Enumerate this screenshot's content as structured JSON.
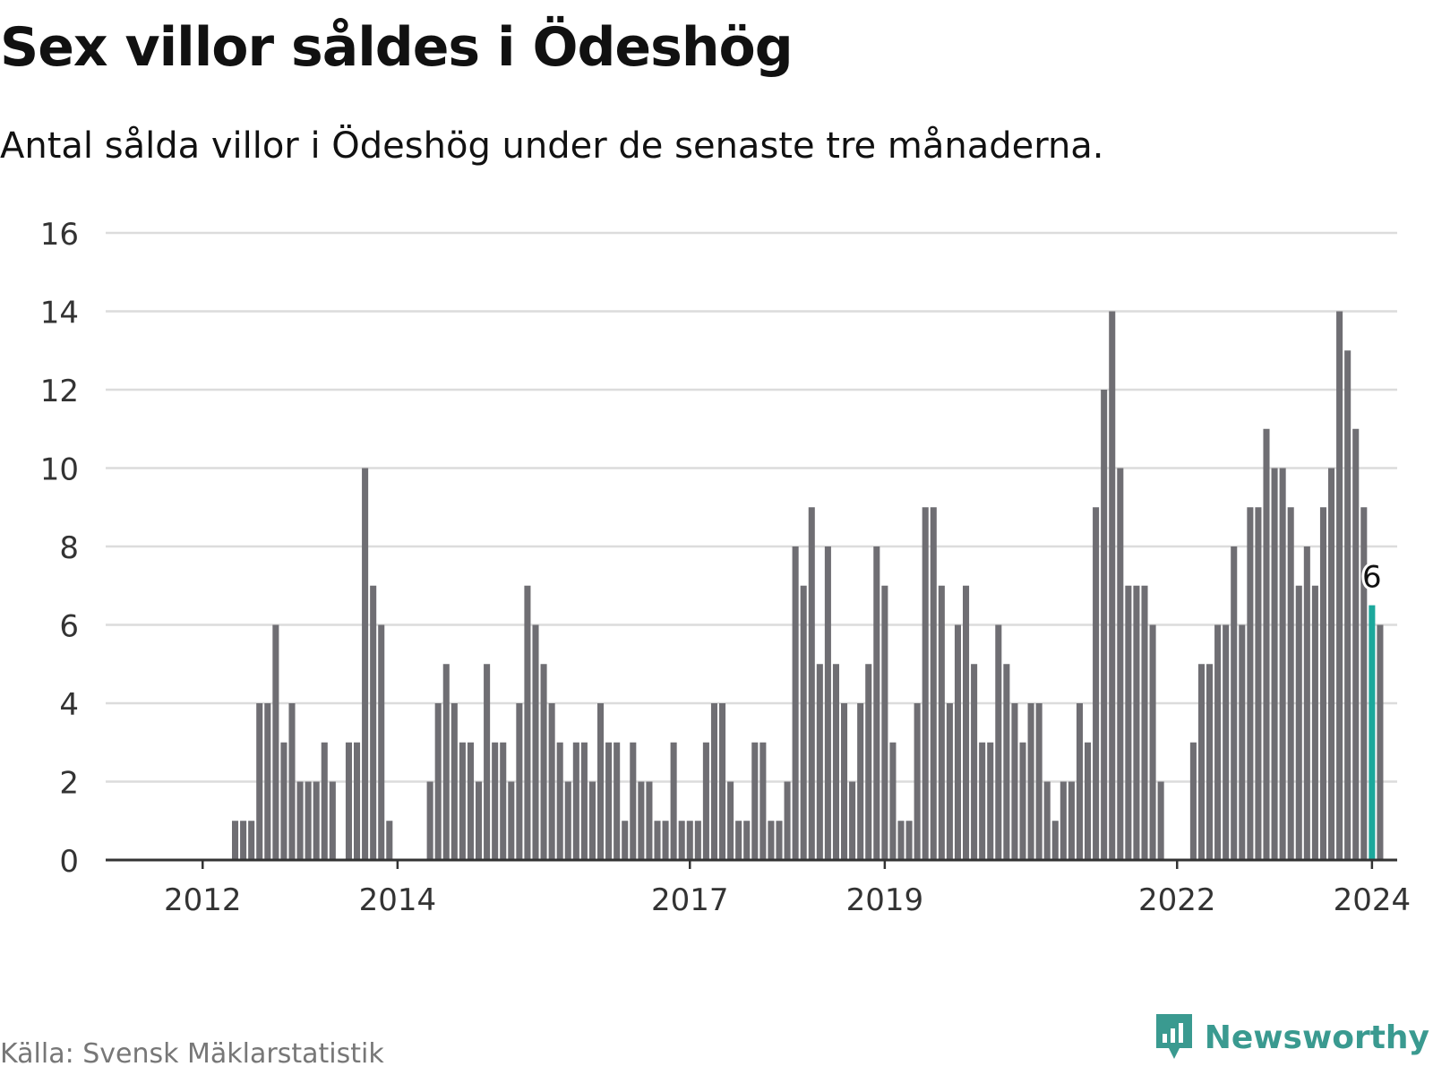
{
  "title": "Sex villor såldes i Ödeshög",
  "subtitle": "Antal sålda villor i Ödeshög under de senaste tre månaderna.",
  "source": "Källa: Svensk Mäklarstatistik",
  "brand": "Newsworthy",
  "colors": {
    "bar": "#6f6e73",
    "highlight": "#1ca89c",
    "grid": "#dcdcdc",
    "axis": "#333333",
    "brand": "#3a9a90"
  },
  "chart_data": {
    "type": "bar",
    "title": "Sex villor såldes i Ödeshög",
    "xlabel": "",
    "ylabel": "",
    "ylim": [
      0,
      16
    ],
    "yticks": [
      0,
      2,
      4,
      6,
      8,
      10,
      12,
      14,
      16
    ],
    "grid": true,
    "start": "2011-01",
    "xticks": [
      {
        "label": "2012",
        "index": 11
      },
      {
        "label": "2014",
        "index": 35
      },
      {
        "label": "2017",
        "index": 71
      },
      {
        "label": "2019",
        "index": 95
      },
      {
        "label": "2022",
        "index": 131
      },
      {
        "label": "2024",
        "index": 155
      }
    ],
    "values": [
      0,
      0,
      0,
      0,
      0,
      0,
      0,
      0,
      0,
      0,
      0,
      0,
      0,
      0,
      0,
      1,
      1,
      1,
      4,
      4,
      6,
      3,
      4,
      2,
      2,
      2,
      3,
      2,
      0,
      3,
      3,
      10,
      7,
      6,
      1,
      0,
      0,
      0,
      0,
      2,
      4,
      5,
      4,
      3,
      3,
      2,
      5,
      3,
      3,
      2,
      4,
      7,
      6,
      5,
      4,
      3,
      2,
      3,
      3,
      2,
      4,
      3,
      3,
      1,
      3,
      2,
      2,
      1,
      1,
      3,
      1,
      1,
      1,
      3,
      4,
      4,
      2,
      1,
      1,
      3,
      3,
      1,
      1,
      2,
      8,
      7,
      9,
      5,
      8,
      5,
      4,
      2,
      4,
      5,
      8,
      7,
      3,
      1,
      1,
      4,
      9,
      9,
      7,
      4,
      6,
      7,
      5,
      3,
      3,
      6,
      5,
      4,
      3,
      4,
      4,
      2,
      1,
      2,
      2,
      4,
      3,
      9,
      12,
      14,
      10,
      7,
      7,
      7,
      6,
      2,
      0,
      0,
      0,
      3,
      5,
      5,
      6,
      6,
      8,
      6,
      9,
      9,
      11,
      10,
      10,
      9,
      7,
      8,
      7,
      9,
      10,
      14,
      13,
      11,
      9,
      6.5,
      6
    ],
    "highlight_index": 155,
    "highlight_label": "6"
  }
}
